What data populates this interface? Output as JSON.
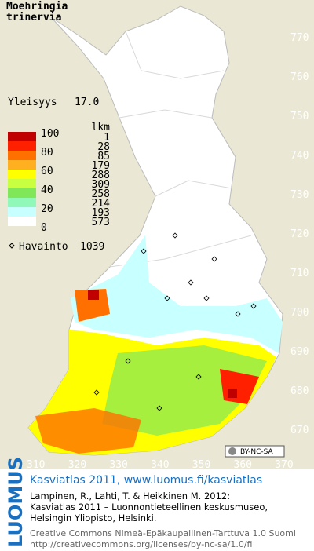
{
  "title": [
    "Moehringia",
    "trinervia"
  ],
  "frequency": {
    "label": "Yleisyys",
    "value": "17.0"
  },
  "legend": {
    "scale": [
      100,
      80,
      60,
      40,
      20,
      0
    ],
    "count_header": "lkm",
    "colors": [
      "#c00000",
      "#ff2000",
      "#ff7000",
      "#ffb020",
      "#ffff00",
      "#c8ff40",
      "#80e858",
      "#90f8b8",
      "#c8ffff",
      "#ffffff"
    ],
    "counts": [
      1,
      28,
      85,
      179,
      288,
      309,
      258,
      214,
      193,
      573
    ]
  },
  "observations": {
    "label": "Havainto",
    "value": 1039
  },
  "grid_north": [
    770,
    760,
    750,
    740,
    730,
    720,
    710,
    700,
    690,
    680,
    670
  ],
  "grid_east": [
    310,
    320,
    330,
    340,
    350,
    360,
    370
  ],
  "license_badge": "BY-NC-SA",
  "footer": {
    "logo": "LUOMUS",
    "link": "Kasviatlas 2011, www.luomus.fi/kasviatlas",
    "citation": [
      "Lampinen, R., Lahti, T. & Heikkinen M. 2012:",
      "Kasviatlas 2011 – Luonnontieteellinen keskusmuseo,",
      "Helsingin Yliopisto, Helsinki."
    ],
    "license": [
      "Creative Commons Nimeä-Epäkaupallinen-Tarttuva 1.0 Suomi",
      "http://creativecommons.org/licenses/by-nc-sa/1.0/fi"
    ]
  }
}
